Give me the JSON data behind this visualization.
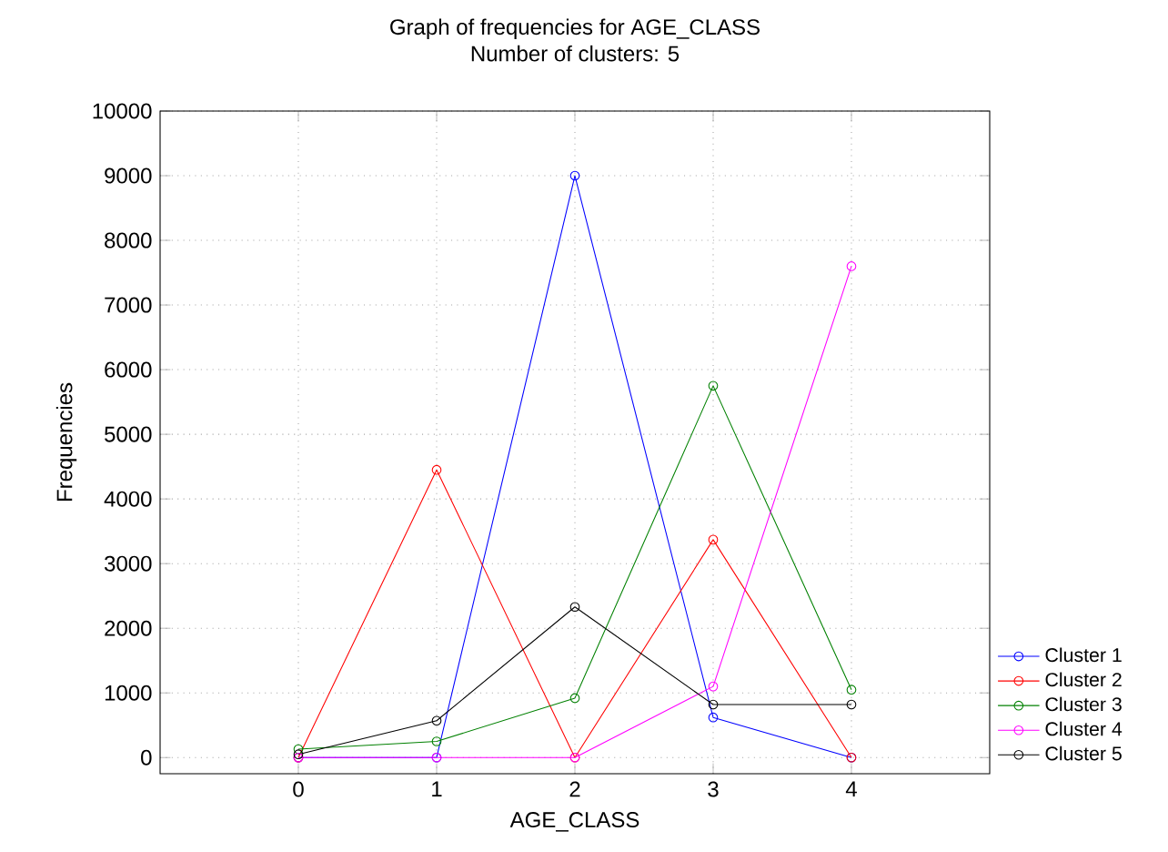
{
  "chart_data": {
    "type": "line",
    "title": "Graph of frequencies for AGE_CLASS",
    "subtitle": "Number of clusters: 5",
    "xlabel": "AGE_CLASS",
    "ylabel": "Frequencies",
    "x": [
      0,
      1,
      2,
      3,
      4
    ],
    "series": [
      {
        "name": "Cluster 1",
        "color": "#0000ff",
        "values": [
          0,
          0,
          9000,
          620,
          0
        ]
      },
      {
        "name": "Cluster 2",
        "color": "#ff0000",
        "values": [
          0,
          4450,
          0,
          3370,
          0
        ]
      },
      {
        "name": "Cluster 3",
        "color": "#008000",
        "values": [
          130,
          250,
          920,
          5750,
          1050
        ]
      },
      {
        "name": "Cluster 4",
        "color": "#ff00ff",
        "values": [
          0,
          0,
          0,
          1100,
          7600
        ]
      },
      {
        "name": "Cluster 5",
        "color": "#000000",
        "values": [
          50,
          570,
          2330,
          820,
          820
        ]
      }
    ],
    "xlim": [
      -1,
      5
    ],
    "ylim": [
      -250,
      10000
    ],
    "xticks": [
      0,
      1,
      2,
      3,
      4
    ],
    "yticks": [
      0,
      1000,
      2000,
      3000,
      4000,
      5000,
      6000,
      7000,
      8000,
      9000,
      10000
    ],
    "grid": true,
    "legend": "bottom right",
    "marker": "circle",
    "line_style": "solid"
  }
}
